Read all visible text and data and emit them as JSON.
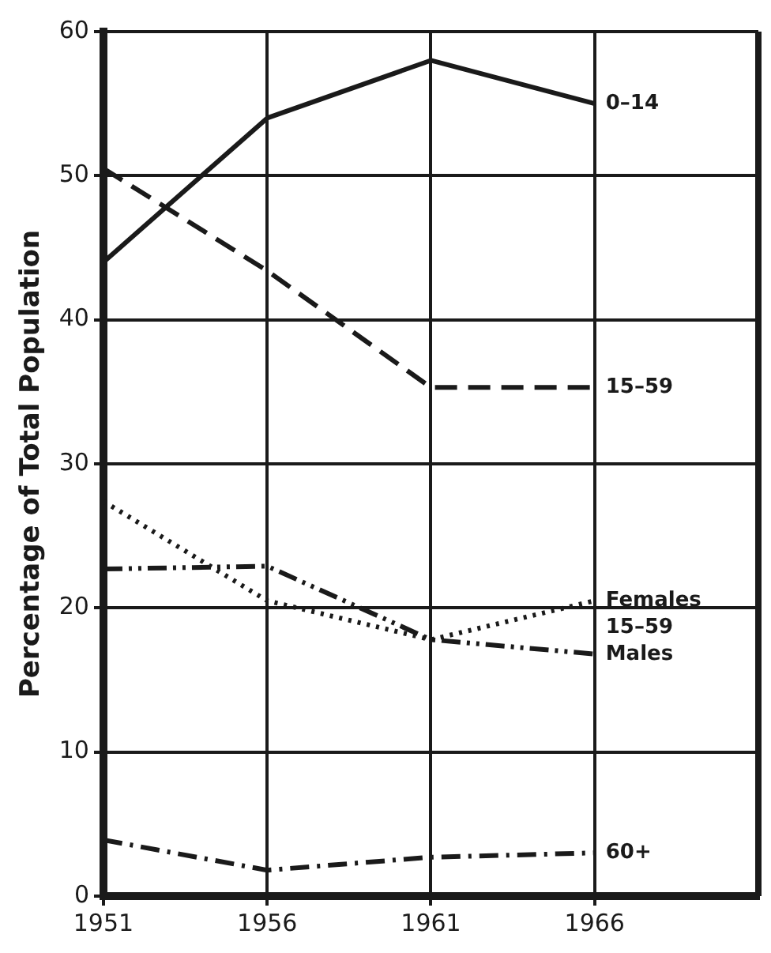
{
  "chart_data": {
    "type": "line",
    "ylabel": "Percentage of Total Population",
    "x": [
      1951,
      1956,
      1961,
      1966
    ],
    "xlim": [
      1951,
      1971
    ],
    "xticks": [
      1951,
      1956,
      1961,
      1966
    ],
    "ylim": [
      0,
      60
    ],
    "yticks": [
      0,
      10,
      20,
      30,
      40,
      50,
      60
    ],
    "grid": true,
    "legend": false,
    "marker": "none",
    "series": [
      {
        "name": "0–14",
        "color": "#1a1a1a",
        "line_style": "solid",
        "values": [
          44,
          54,
          58,
          55
        ]
      },
      {
        "name": "15–59",
        "color": "#1a1a1a",
        "line_style": "dashed",
        "values": [
          50.5,
          43.4,
          35.3,
          35.3
        ]
      },
      {
        "name": "Females",
        "color": "#1a1a1a",
        "line_style": "dotted",
        "values": [
          27.4,
          20.5,
          17.8,
          20.5
        ]
      },
      {
        "name": "Males",
        "color": "#1a1a1a",
        "line_style": "dashdotdot",
        "values": [
          22.7,
          22.9,
          17.8,
          16.8
        ]
      },
      {
        "name": "60+",
        "color": "#1a1a1a",
        "line_style": "dashdot",
        "values": [
          3.9,
          1.8,
          2.7,
          3.0
        ]
      }
    ],
    "annotations": [
      "15–59"
    ]
  }
}
